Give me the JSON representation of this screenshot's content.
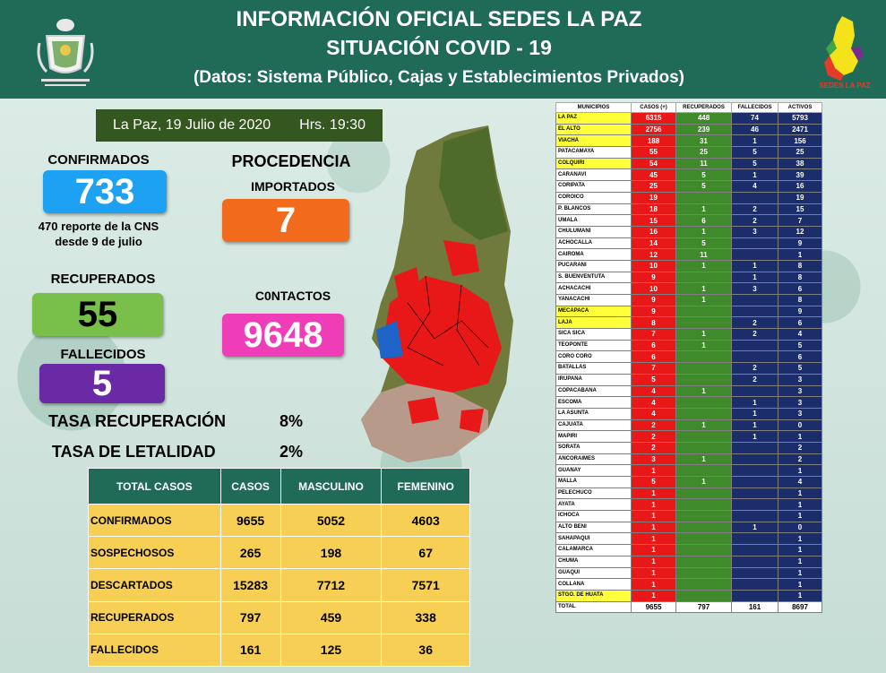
{
  "header": {
    "line1": "INFORMACIÓN OFICIAL SEDES LA PAZ",
    "line2": "SITUACIÓN  COVID - 19",
    "line3": "(Datos: Sistema Público, Cajas y Establecimientos Privados)",
    "sedes_logo_text": "SEDES LA PAZ"
  },
  "date_bar": {
    "date": "La Paz, 19  Julio de 2020",
    "time": "Hrs. 19:30"
  },
  "confirmados": {
    "label": "CONFIRMADOS",
    "value": "733",
    "note_line1": "470 reporte de la CNS",
    "note_line2": "desde 9 de julio"
  },
  "recuperados": {
    "label": "RECUPERADOS",
    "value": "55"
  },
  "fallecidos": {
    "label": "FALLECIDOS",
    "value": "5"
  },
  "procedencia": {
    "label": "PROCEDENCIA",
    "importados_label": "IMPORTADOS",
    "importados_value": "7",
    "contactos_label": "C0NTACTOS",
    "contactos_value": "9648"
  },
  "tasas": {
    "recuperacion_label": "TASA RECUPERACIÓN",
    "recuperacion_value": "8%",
    "letalidad_label": "TASA  DE LETALIDAD",
    "letalidad_value": "2%"
  },
  "colors": {
    "header": "#1f6b58",
    "confirmed": "#1da1f2",
    "recovered": "#79c04a",
    "deaths": "#6a2aa5",
    "imported": "#f26a1b",
    "contacts": "#ef3db8",
    "cases_col": "#e81818",
    "recovered_col": "#3f8a2b",
    "deaths_col": "#1c2d6b"
  },
  "totals_table": {
    "headers": [
      "TOTAL CASOS",
      "CASOS",
      "MASCULINO",
      "FEMENINO"
    ],
    "rows": [
      [
        "CONFIRMADOS",
        "9655",
        "5052",
        "4603"
      ],
      [
        "SOSPECHOSOS",
        "265",
        "198",
        "67"
      ],
      [
        "DESCARTADOS",
        "15283",
        "7712",
        "7571"
      ],
      [
        "RECUPERADOS",
        "797",
        "459",
        "338"
      ],
      [
        "FALLECIDOS",
        "161",
        "125",
        "36"
      ]
    ]
  },
  "muni_table": {
    "headers": [
      "MUNICIPIOS",
      "CASOS (+)",
      "RECUPERADOS",
      "FALLECIDOS",
      "ACTIVOS"
    ],
    "rows": [
      {
        "n": "LA PAZ",
        "c": "6315",
        "r": "448",
        "f": "74",
        "a": "5793",
        "hl": true
      },
      {
        "n": "EL ALTO",
        "c": "2756",
        "r": "239",
        "f": "46",
        "a": "2471",
        "hl": true
      },
      {
        "n": "VIACHA",
        "c": "188",
        "r": "31",
        "f": "1",
        "a": "156",
        "hl": true
      },
      {
        "n": "PATACAMAYA",
        "c": "55",
        "r": "25",
        "f": "5",
        "a": "25",
        "hl": false
      },
      {
        "n": "COLQUIRI",
        "c": "54",
        "r": "11",
        "f": "5",
        "a": "38",
        "hl": true
      },
      {
        "n": "CARANAVI",
        "c": "45",
        "r": "5",
        "f": "1",
        "a": "39",
        "hl": false
      },
      {
        "n": "CORIPATA",
        "c": "25",
        "r": "5",
        "f": "4",
        "a": "16",
        "hl": false
      },
      {
        "n": "COROICO",
        "c": "19",
        "r": "",
        "f": "",
        "a": "19",
        "hl": false
      },
      {
        "n": "P. BLANCOS",
        "c": "18",
        "r": "1",
        "f": "2",
        "a": "15",
        "hl": false
      },
      {
        "n": "UMALA",
        "c": "15",
        "r": "6",
        "f": "2",
        "a": "7",
        "hl": false
      },
      {
        "n": "CHULUMANI",
        "c": "16",
        "r": "1",
        "f": "3",
        "a": "12",
        "hl": false
      },
      {
        "n": "ACHOCALLA",
        "c": "14",
        "r": "5",
        "f": "",
        "a": "9",
        "hl": false
      },
      {
        "n": "CAIROMA",
        "c": "12",
        "r": "11",
        "f": "",
        "a": "1",
        "hl": false
      },
      {
        "n": "PUCARANI",
        "c": "10",
        "r": "1",
        "f": "1",
        "a": "8",
        "hl": false
      },
      {
        "n": "S. BUENVENTUTA",
        "c": "9",
        "r": "",
        "f": "1",
        "a": "8",
        "hl": false
      },
      {
        "n": "ACHACACHI",
        "c": "10",
        "r": "1",
        "f": "3",
        "a": "6",
        "hl": false
      },
      {
        "n": "YANACACHI",
        "c": "9",
        "r": "1",
        "f": "",
        "a": "8",
        "hl": false
      },
      {
        "n": "MECAPACA",
        "c": "9",
        "r": "",
        "f": "",
        "a": "9",
        "hl": true
      },
      {
        "n": "LAJA",
        "c": "8",
        "r": "",
        "f": "2",
        "a": "6",
        "hl": true
      },
      {
        "n": "SICA SICA",
        "c": "7",
        "r": "1",
        "f": "2",
        "a": "4",
        "hl": false
      },
      {
        "n": "TEOPONTE",
        "c": "6",
        "r": "1",
        "f": "",
        "a": "5",
        "hl": false
      },
      {
        "n": "CORO CORO",
        "c": "6",
        "r": "",
        "f": "",
        "a": "6",
        "hl": false
      },
      {
        "n": "BATALLAS",
        "c": "7",
        "r": "",
        "f": "2",
        "a": "5",
        "hl": false
      },
      {
        "n": "IRUPANA",
        "c": "5",
        "r": "",
        "f": "2",
        "a": "3",
        "hl": false
      },
      {
        "n": "COPACABANA",
        "c": "4",
        "r": "1",
        "f": "",
        "a": "3",
        "hl": false
      },
      {
        "n": "ESCOMA",
        "c": "4",
        "r": "",
        "f": "1",
        "a": "3",
        "hl": false
      },
      {
        "n": "LA ASUNTA",
        "c": "4",
        "r": "",
        "f": "1",
        "a": "3",
        "hl": false
      },
      {
        "n": "CAJUATA",
        "c": "2",
        "r": "1",
        "f": "1",
        "a": "0",
        "hl": false
      },
      {
        "n": "MAPIRI",
        "c": "2",
        "r": "",
        "f": "1",
        "a": "1",
        "hl": false
      },
      {
        "n": "SORATA",
        "c": "2",
        "r": "",
        "f": "",
        "a": "2",
        "hl": false
      },
      {
        "n": "ANCORAIMES",
        "c": "3",
        "r": "1",
        "f": "",
        "a": "2",
        "hl": false
      },
      {
        "n": "GUANAY",
        "c": "1",
        "r": "",
        "f": "",
        "a": "1",
        "hl": false
      },
      {
        "n": "MALLA",
        "c": "5",
        "r": "1",
        "f": "",
        "a": "4",
        "hl": false
      },
      {
        "n": "PELECHUCO",
        "c": "1",
        "r": "",
        "f": "",
        "a": "1",
        "hl": false
      },
      {
        "n": "AYATA",
        "c": "1",
        "r": "",
        "f": "",
        "a": "1",
        "hl": false
      },
      {
        "n": "ICHOCA",
        "c": "1",
        "r": "",
        "f": "",
        "a": "1",
        "hl": false
      },
      {
        "n": "ALTO BENI",
        "c": "1",
        "r": "",
        "f": "1",
        "a": "0",
        "hl": false
      },
      {
        "n": "SAHAPAQUI",
        "c": "1",
        "r": "",
        "f": "",
        "a": "1",
        "hl": false
      },
      {
        "n": "CALAMARCA",
        "c": "1",
        "r": "",
        "f": "",
        "a": "1",
        "hl": false
      },
      {
        "n": "CHUMA",
        "c": "1",
        "r": "",
        "f": "",
        "a": "1",
        "hl": false
      },
      {
        "n": "GUAQUI",
        "c": "1",
        "r": "",
        "f": "",
        "a": "1",
        "hl": false
      },
      {
        "n": "COLLANA",
        "c": "1",
        "r": "",
        "f": "",
        "a": "1",
        "hl": false
      },
      {
        "n": "STGO. DE HUATA",
        "c": "1",
        "r": "",
        "f": "",
        "a": "1",
        "hl": true
      }
    ],
    "total": {
      "n": "TOTAL",
      "c": "9655",
      "r": "797",
      "f": "161",
      "a": "8697"
    }
  }
}
